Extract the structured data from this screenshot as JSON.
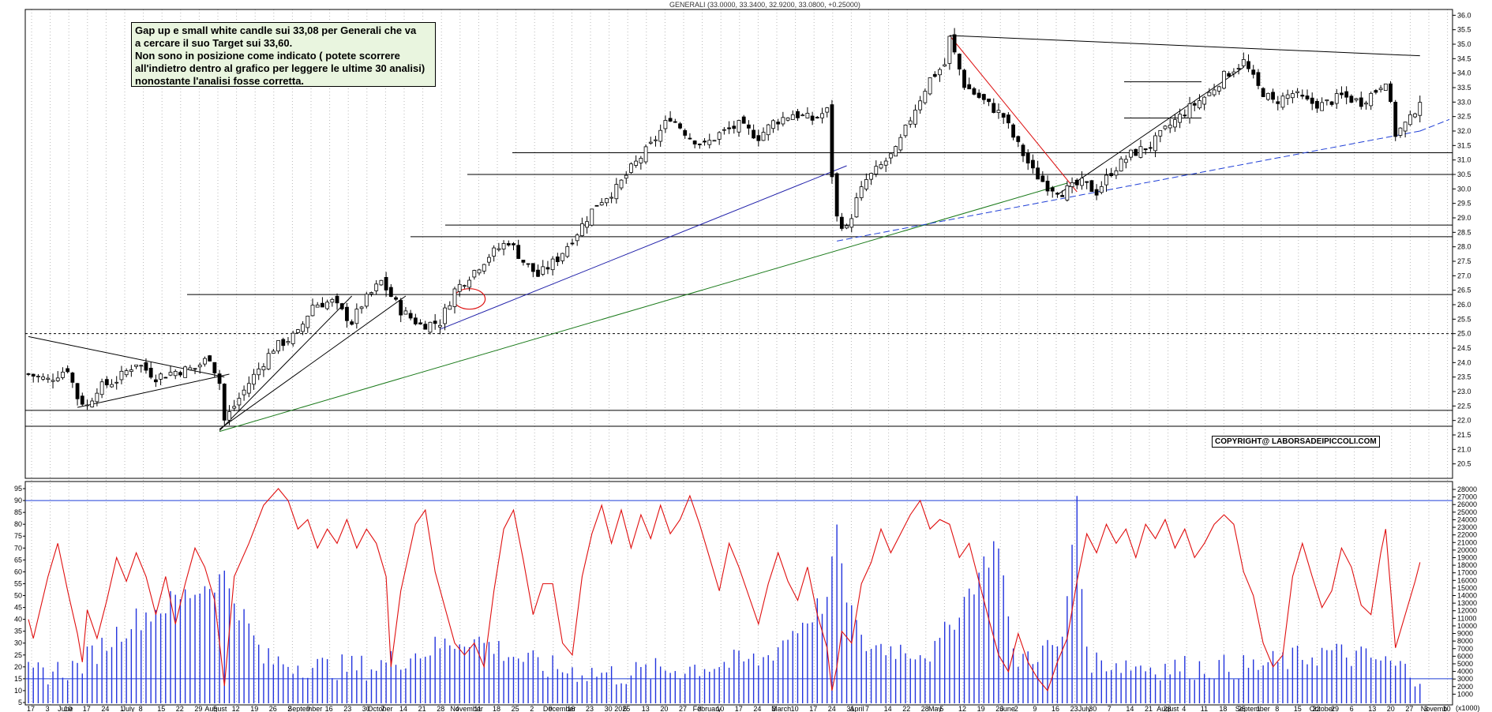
{
  "chart_data": {
    "type": "candlestick",
    "title": "GENERALI (33.0000, 33.3400, 32.9200, 33.0800, +0.25000)",
    "annotation": {
      "lines": [
        "Gap up e small white candle sui 33,08 per Generali che va",
        "a cercare il suo Target sui 33,60.",
        "Non sono in posizione come indicato ( potete scorrere",
        "all'indietro dentro al grafico per leggere le ultime 30 analisi)",
        "nonostante l'analisi fosse corretta."
      ]
    },
    "copyright": "COPYRIGHT@ LABORSADEIPICCOLI.COM",
    "price_axis": {
      "ylim": [
        20.0,
        36.2
      ],
      "ticks": [
        "20.5",
        "21.0",
        "21.5",
        "22.0",
        "22.5",
        "23.0",
        "23.5",
        "24.0",
        "24.5",
        "25.0",
        "25.5",
        "26.0",
        "26.5",
        "27.0",
        "27.5",
        "28.0",
        "28.5",
        "29.0",
        "29.5",
        "30.0",
        "30.5",
        "31.0",
        "31.5",
        "32.0",
        "32.5",
        "33.0",
        "33.5",
        "34.0",
        "34.5",
        "35.0",
        "35.5",
        "36.0"
      ]
    },
    "oscillator_axis": {
      "ylim": [
        4,
        98
      ],
      "ticks": [
        "5",
        "10",
        "15",
        "20",
        "25",
        "30",
        "35",
        "40",
        "45",
        "50",
        "55",
        "60",
        "65",
        "70",
        "75",
        "80",
        "85",
        "90",
        "95"
      ],
      "levels": [
        90,
        15
      ]
    },
    "volume_axis": {
      "ticks": [
        "1000",
        "2000",
        "3000",
        "4000",
        "5000",
        "6000",
        "7000",
        "8000",
        "9000",
        "10000",
        "11000",
        "12000",
        "13000",
        "14000",
        "15000",
        "16000",
        "17000",
        "18000",
        "19000",
        "20000",
        "21000",
        "22000",
        "23000",
        "24000",
        "25000",
        "26000",
        "27000",
        "28000"
      ],
      "unit_label": "(x1000)"
    },
    "x_axis": {
      "day_labels": [
        "17",
        "3",
        "10",
        "17",
        "24",
        "1",
        "8",
        "15",
        "22",
        "29",
        "5",
        "12",
        "19",
        "26",
        "2",
        "9",
        "16",
        "23",
        "30",
        "7",
        "14",
        "21",
        "28",
        "4",
        "11",
        "18",
        "25",
        "2",
        "9",
        "16",
        "23",
        "30",
        "6",
        "13",
        "20",
        "27",
        "3",
        "10",
        "17",
        "24",
        "3",
        "10",
        "17",
        "24",
        "31",
        "7",
        "14",
        "22",
        "28",
        "5",
        "12",
        "19",
        "26",
        "2",
        "9",
        "16",
        "23",
        "30",
        "7",
        "14",
        "21",
        "28",
        "4",
        "11",
        "18",
        "25",
        "1",
        "8",
        "15",
        "22",
        "29",
        "6",
        "13",
        "20",
        "27",
        "3",
        "10"
      ],
      "month_labels": [
        "June",
        "July",
        "August",
        "September",
        "October",
        "November",
        "December",
        "2025",
        "February",
        "March",
        "April",
        "May",
        "June",
        "July",
        "August",
        "September",
        "October",
        "Novemb"
      ]
    },
    "horizontal_levels": [
      21.8,
      22.35,
      26.35,
      28.35,
      28.75,
      30.5,
      31.25,
      32.45,
      33.7
    ],
    "dashed_level": 25.0,
    "series": {
      "close_path": [
        [
          0,
          23.6
        ],
        [
          4,
          23.4
        ],
        [
          8,
          23.8
        ],
        [
          10,
          22.8
        ],
        [
          12,
          22.5
        ],
        [
          14,
          23.1
        ],
        [
          18,
          23.4
        ],
        [
          22,
          24.0
        ],
        [
          26,
          23.5
        ],
        [
          30,
          23.7
        ],
        [
          34,
          23.8
        ],
        [
          37,
          24.2
        ],
        [
          39,
          23.3
        ],
        [
          40,
          22.0
        ],
        [
          42,
          22.5
        ],
        [
          45,
          23.3
        ],
        [
          50,
          24.5
        ],
        [
          55,
          25.0
        ],
        [
          58,
          26.0
        ],
        [
          62,
          26.1
        ],
        [
          66,
          25.4
        ],
        [
          68,
          26.0
        ],
        [
          72,
          26.8
        ],
        [
          74,
          26.3
        ],
        [
          76,
          25.8
        ],
        [
          80,
          25.3
        ],
        [
          84,
          25.4
        ],
        [
          87,
          26.5
        ],
        [
          90,
          27.0
        ],
        [
          94,
          27.7
        ],
        [
          98,
          28.2
        ],
        [
          101,
          27.5
        ],
        [
          104,
          27.0
        ],
        [
          108,
          27.6
        ],
        [
          112,
          28.5
        ],
        [
          116,
          29.5
        ],
        [
          120,
          30.0
        ],
        [
          123,
          30.7
        ],
        [
          127,
          31.5
        ],
        [
          131,
          32.5
        ],
        [
          135,
          31.8
        ],
        [
          138,
          31.5
        ],
        [
          141,
          31.9
        ],
        [
          145,
          32.2
        ],
        [
          149,
          31.8
        ],
        [
          152,
          32.3
        ],
        [
          156,
          32.6
        ],
        [
          160,
          32.4
        ],
        [
          163,
          32.7
        ],
        [
          164,
          30.5
        ],
        [
          165,
          29.0
        ],
        [
          167,
          28.6
        ],
        [
          169,
          29.6
        ],
        [
          171,
          30.3
        ],
        [
          174,
          30.8
        ],
        [
          177,
          31.3
        ],
        [
          181,
          32.8
        ],
        [
          184,
          33.8
        ],
        [
          187,
          34.3
        ],
        [
          188,
          35.2
        ],
        [
          191,
          33.6
        ],
        [
          193,
          33.3
        ],
        [
          196,
          32.9
        ],
        [
          199,
          32.5
        ],
        [
          201,
          31.8
        ],
        [
          205,
          30.6
        ],
        [
          208,
          30.1
        ],
        [
          211,
          29.9
        ],
        [
          215,
          30.2
        ],
        [
          218,
          29.9
        ],
        [
          221,
          30.6
        ],
        [
          225,
          31.2
        ],
        [
          229,
          31.5
        ],
        [
          233,
          32.2
        ],
        [
          237,
          32.8
        ],
        [
          241,
          33.3
        ],
        [
          244,
          33.9
        ],
        [
          248,
          34.4
        ],
        [
          251,
          33.5
        ],
        [
          254,
          33.0
        ],
        [
          258,
          33.3
        ],
        [
          261,
          33.0
        ],
        [
          264,
          32.9
        ],
        [
          268,
          33.2
        ],
        [
          272,
          33.0
        ],
        [
          275,
          33.4
        ],
        [
          277,
          33.8
        ],
        [
          279,
          31.9
        ],
        [
          282,
          32.4
        ],
        [
          284,
          33.1
        ]
      ],
      "oscillator_path": [
        [
          0,
          40
        ],
        [
          1,
          32
        ],
        [
          4,
          58
        ],
        [
          6,
          72
        ],
        [
          8,
          52
        ],
        [
          10,
          34
        ],
        [
          11,
          22
        ],
        [
          12,
          44
        ],
        [
          14,
          32
        ],
        [
          16,
          48
        ],
        [
          18,
          66
        ],
        [
          20,
          56
        ],
        [
          22,
          68
        ],
        [
          24,
          58
        ],
        [
          26,
          42
        ],
        [
          28,
          58
        ],
        [
          30,
          38
        ],
        [
          32,
          55
        ],
        [
          34,
          70
        ],
        [
          36,
          62
        ],
        [
          38,
          48
        ],
        [
          40,
          12
        ],
        [
          42,
          58
        ],
        [
          45,
          72
        ],
        [
          48,
          88
        ],
        [
          51,
          95
        ],
        [
          53,
          90
        ],
        [
          55,
          78
        ],
        [
          57,
          82
        ],
        [
          59,
          70
        ],
        [
          61,
          78
        ],
        [
          63,
          72
        ],
        [
          65,
          82
        ],
        [
          67,
          70
        ],
        [
          69,
          78
        ],
        [
          71,
          72
        ],
        [
          73,
          58
        ],
        [
          74,
          20
        ],
        [
          76,
          52
        ],
        [
          79,
          80
        ],
        [
          81,
          86
        ],
        [
          83,
          60
        ],
        [
          85,
          45
        ],
        [
          87,
          30
        ],
        [
          89,
          25
        ],
        [
          91,
          30
        ],
        [
          93,
          20
        ],
        [
          95,
          52
        ],
        [
          97,
          78
        ],
        [
          99,
          86
        ],
        [
          101,
          65
        ],
        [
          103,
          42
        ],
        [
          105,
          55
        ],
        [
          107,
          55
        ],
        [
          109,
          30
        ],
        [
          111,
          25
        ],
        [
          113,
          58
        ],
        [
          115,
          76
        ],
        [
          117,
          88
        ],
        [
          119,
          72
        ],
        [
          121,
          86
        ],
        [
          123,
          70
        ],
        [
          125,
          84
        ],
        [
          127,
          74
        ],
        [
          129,
          88
        ],
        [
          131,
          76
        ],
        [
          133,
          82
        ],
        [
          135,
          92
        ],
        [
          137,
          80
        ],
        [
          139,
          66
        ],
        [
          141,
          52
        ],
        [
          143,
          72
        ],
        [
          145,
          62
        ],
        [
          147,
          50
        ],
        [
          149,
          38
        ],
        [
          151,
          55
        ],
        [
          153,
          68
        ],
        [
          155,
          56
        ],
        [
          157,
          48
        ],
        [
          159,
          62
        ],
        [
          161,
          42
        ],
        [
          163,
          28
        ],
        [
          164,
          10
        ],
        [
          165,
          20
        ],
        [
          166,
          35
        ],
        [
          168,
          30
        ],
        [
          170,
          55
        ],
        [
          172,
          64
        ],
        [
          174,
          78
        ],
        [
          176,
          68
        ],
        [
          178,
          76
        ],
        [
          180,
          84
        ],
        [
          182,
          90
        ],
        [
          184,
          78
        ],
        [
          186,
          82
        ],
        [
          188,
          80
        ],
        [
          190,
          66
        ],
        [
          192,
          72
        ],
        [
          194,
          56
        ],
        [
          196,
          40
        ],
        [
          198,
          25
        ],
        [
          200,
          18
        ],
        [
          202,
          34
        ],
        [
          204,
          22
        ],
        [
          206,
          15
        ],
        [
          208,
          10
        ],
        [
          210,
          22
        ],
        [
          212,
          32
        ],
        [
          214,
          56
        ],
        [
          216,
          76
        ],
        [
          218,
          68
        ],
        [
          220,
          80
        ],
        [
          222,
          72
        ],
        [
          224,
          78
        ],
        [
          226,
          66
        ],
        [
          228,
          80
        ],
        [
          230,
          74
        ],
        [
          232,
          82
        ],
        [
          234,
          70
        ],
        [
          236,
          78
        ],
        [
          238,
          66
        ],
        [
          240,
          72
        ],
        [
          242,
          80
        ],
        [
          244,
          84
        ],
        [
          246,
          80
        ],
        [
          248,
          60
        ],
        [
          250,
          50
        ],
        [
          252,
          30
        ],
        [
          254,
          20
        ],
        [
          256,
          25
        ],
        [
          258,
          58
        ],
        [
          260,
          72
        ],
        [
          262,
          58
        ],
        [
          264,
          45
        ],
        [
          266,
          52
        ],
        [
          268,
          70
        ],
        [
          270,
          62
        ],
        [
          272,
          46
        ],
        [
          274,
          42
        ],
        [
          276,
          68
        ],
        [
          277,
          78
        ],
        [
          279,
          28
        ],
        [
          281,
          42
        ],
        [
          283,
          56
        ],
        [
          284,
          64
        ]
      ],
      "volume_path": [
        [
          0,
          2
        ],
        [
          10,
          3
        ],
        [
          21,
          9
        ],
        [
          40,
          15
        ],
        [
          48,
          4
        ],
        [
          60,
          3
        ],
        [
          70,
          3
        ],
        [
          90,
          7
        ],
        [
          105,
          3
        ],
        [
          120,
          2
        ],
        [
          135,
          3
        ],
        [
          150,
          4
        ],
        [
          163,
          12
        ],
        [
          164,
          16
        ],
        [
          165,
          22
        ],
        [
          166,
          15
        ],
        [
          170,
          6
        ],
        [
          185,
          5
        ],
        [
          198,
          20
        ],
        [
          201,
          4
        ],
        [
          211,
          6
        ],
        [
          214,
          26
        ],
        [
          216,
          4
        ],
        [
          230,
          3
        ],
        [
          250,
          3
        ],
        [
          265,
          5
        ],
        [
          275,
          4
        ],
        [
          284,
          2
        ]
      ]
    }
  }
}
